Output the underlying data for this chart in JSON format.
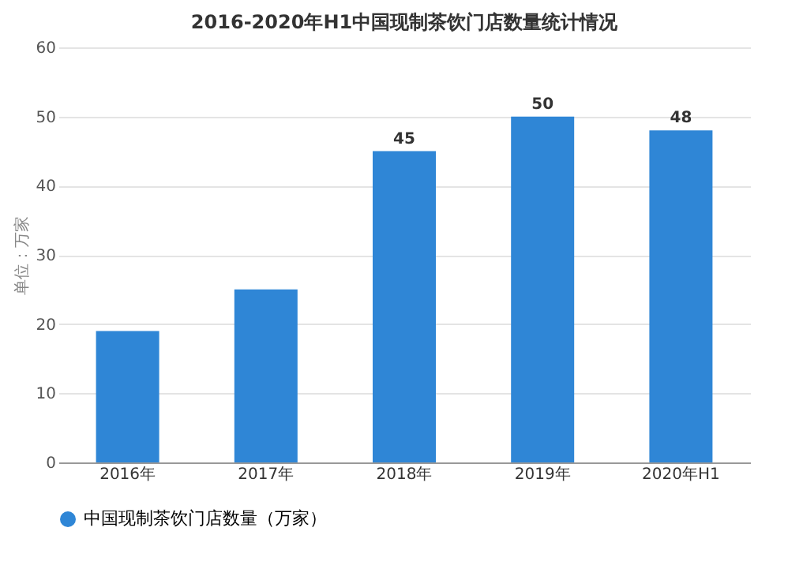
{
  "chart_data": {
    "type": "bar",
    "title": "2016-2020年H1中国现制茶饮门店数量统计情况",
    "categories": [
      "2016年",
      "2017年",
      "2018年",
      "2019年",
      "2020年H1"
    ],
    "series": [
      {
        "name": "中国现制茶饮门店数量（万家）",
        "color": "#2f86d6",
        "values": [
          19,
          25,
          45,
          50,
          48
        ],
        "value_labels": [
          null,
          null,
          "45",
          "50",
          "48"
        ]
      }
    ],
    "ylabel": "单位：万家",
    "ylim": [
      0,
      60
    ],
    "yticks": [
      0,
      10,
      20,
      30,
      40,
      50,
      60
    ],
    "grid": "y",
    "legend": "bottom"
  }
}
